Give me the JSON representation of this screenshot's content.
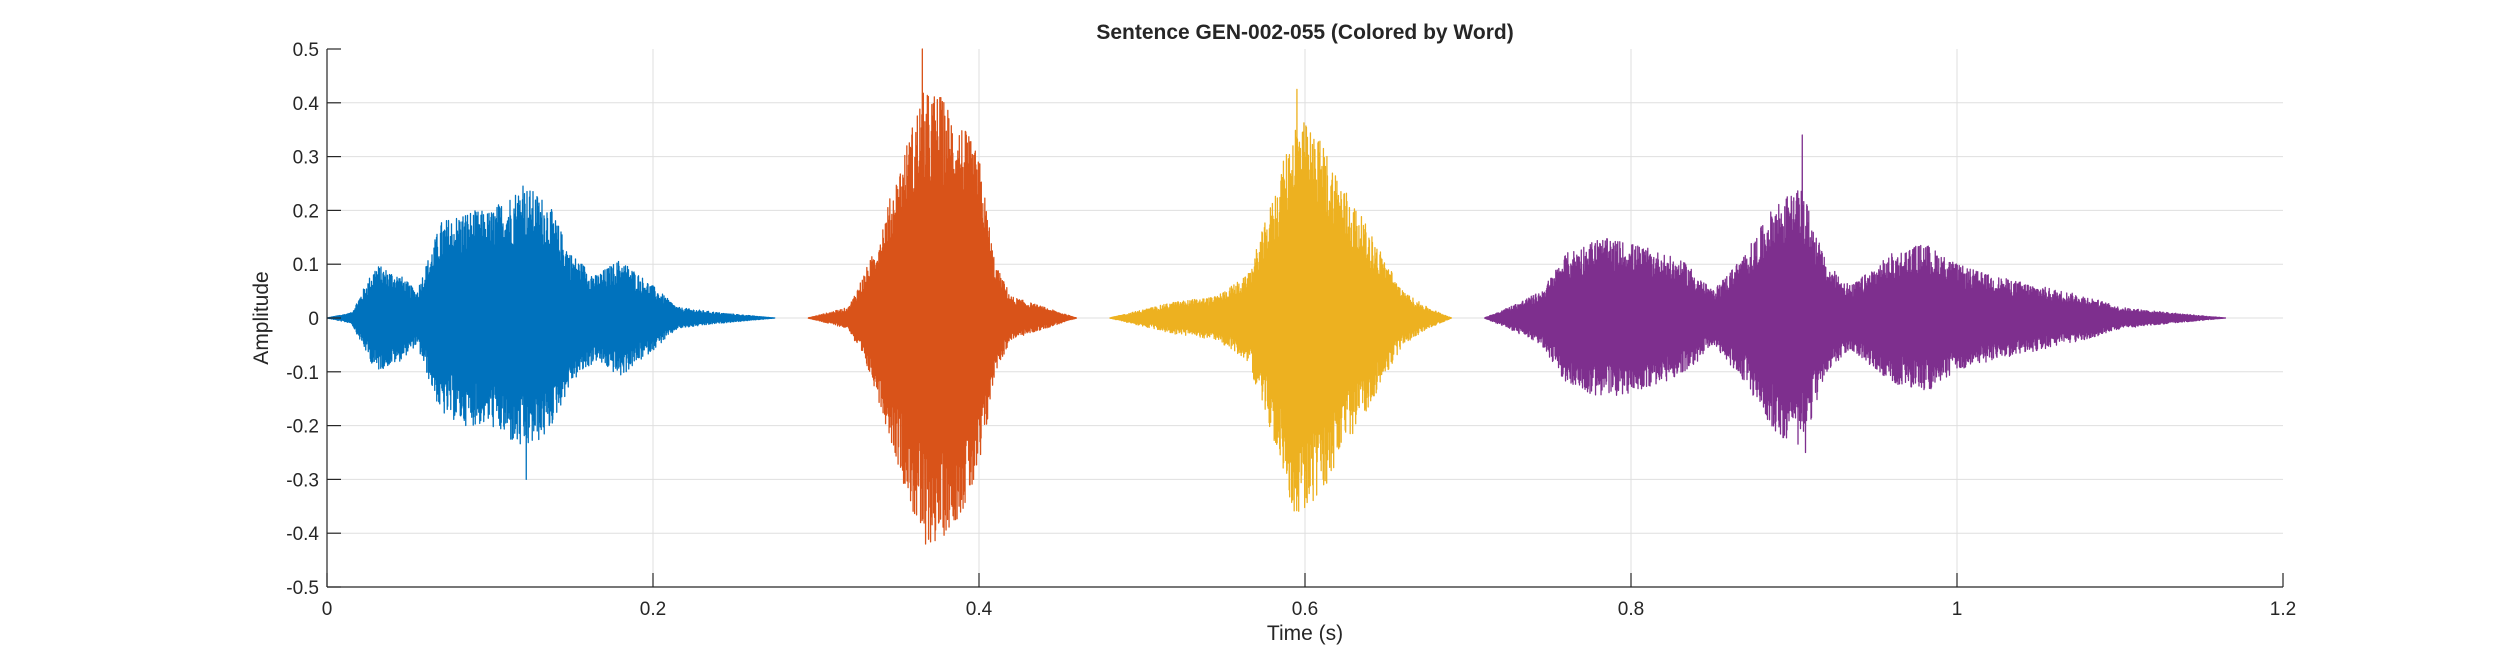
{
  "chart_data": {
    "type": "line",
    "title": "Sentence GEN-002-055 (Colored by Word)",
    "xlabel": "Time (s)",
    "ylabel": "Amplitude",
    "xlim": [
      0,
      1.2
    ],
    "ylim": [
      -0.5,
      0.5
    ],
    "xticks": [
      0,
      0.2,
      0.4,
      0.6,
      0.8,
      1,
      1.2
    ],
    "xtick_labels": [
      "0",
      "0.2",
      "0.4",
      "0.6",
      "0.8",
      "1",
      "1.2"
    ],
    "yticks": [
      -0.5,
      -0.4,
      -0.3,
      -0.2,
      -0.1,
      0,
      0.1,
      0.2,
      0.3,
      0.4,
      0.5
    ],
    "ytick_labels": [
      "-0.5",
      "-0.4",
      "-0.3",
      "-0.2",
      "-0.1",
      "0",
      "0.1",
      "0.2",
      "0.3",
      "0.4",
      "0.5"
    ],
    "grid": true,
    "legend": "none",
    "series": [
      {
        "color": "#0072BD",
        "x_range": [
          0,
          0.275
        ],
        "envelope": [
          [
            0.0,
            0.0
          ],
          [
            0.015,
            0.01
          ],
          [
            0.03,
            0.1
          ],
          [
            0.045,
            0.08
          ],
          [
            0.055,
            0.05
          ],
          [
            0.07,
            0.18
          ],
          [
            0.085,
            0.2
          ],
          [
            0.1,
            0.2
          ],
          [
            0.12,
            0.25
          ],
          [
            0.135,
            0.22
          ],
          [
            0.15,
            0.12
          ],
          [
            0.165,
            0.08
          ],
          [
            0.18,
            0.11
          ],
          [
            0.2,
            0.06
          ],
          [
            0.215,
            0.02
          ],
          [
            0.24,
            0.01
          ],
          [
            0.275,
            0.0
          ]
        ],
        "peak_max": 0.245,
        "peak_min": -0.3
      },
      {
        "color": "#D95319",
        "x_range": [
          0.295,
          0.46
        ],
        "envelope": [
          [
            0.295,
            0.0
          ],
          [
            0.32,
            0.02
          ],
          [
            0.335,
            0.12
          ],
          [
            0.35,
            0.27
          ],
          [
            0.365,
            0.42
          ],
          [
            0.375,
            0.42
          ],
          [
            0.39,
            0.36
          ],
          [
            0.4,
            0.3
          ],
          [
            0.41,
            0.1
          ],
          [
            0.42,
            0.04
          ],
          [
            0.44,
            0.02
          ],
          [
            0.46,
            0.0
          ]
        ],
        "peak_max": 0.5,
        "peak_min": -0.42
      },
      {
        "color": "#EDB120",
        "x_range": [
          0.48,
          0.69
        ],
        "envelope": [
          [
            0.48,
            0.0
          ],
          [
            0.5,
            0.015
          ],
          [
            0.52,
            0.03
          ],
          [
            0.545,
            0.04
          ],
          [
            0.565,
            0.08
          ],
          [
            0.58,
            0.22
          ],
          [
            0.595,
            0.38
          ],
          [
            0.61,
            0.33
          ],
          [
            0.625,
            0.24
          ],
          [
            0.64,
            0.16
          ],
          [
            0.66,
            0.05
          ],
          [
            0.675,
            0.02
          ],
          [
            0.69,
            0.0
          ]
        ],
        "peak_max": 0.425,
        "peak_min": -0.25
      },
      {
        "color": "#7E2F8E",
        "x_range": [
          0.71,
          1.165
        ],
        "envelope": [
          [
            0.71,
            0.0
          ],
          [
            0.725,
            0.02
          ],
          [
            0.745,
            0.05
          ],
          [
            0.76,
            0.12
          ],
          [
            0.78,
            0.15
          ],
          [
            0.8,
            0.14
          ],
          [
            0.82,
            0.12
          ],
          [
            0.835,
            0.1
          ],
          [
            0.85,
            0.05
          ],
          [
            0.87,
            0.12
          ],
          [
            0.89,
            0.22
          ],
          [
            0.905,
            0.24
          ],
          [
            0.92,
            0.1
          ],
          [
            0.935,
            0.06
          ],
          [
            0.96,
            0.12
          ],
          [
            0.98,
            0.14
          ],
          [
            1.0,
            0.1
          ],
          [
            1.02,
            0.08
          ],
          [
            1.05,
            0.06
          ],
          [
            1.08,
            0.04
          ],
          [
            1.1,
            0.02
          ],
          [
            1.13,
            0.01
          ],
          [
            1.165,
            0.0
          ]
        ],
        "peak_max": 0.34,
        "peak_min": -0.25
      }
    ]
  }
}
